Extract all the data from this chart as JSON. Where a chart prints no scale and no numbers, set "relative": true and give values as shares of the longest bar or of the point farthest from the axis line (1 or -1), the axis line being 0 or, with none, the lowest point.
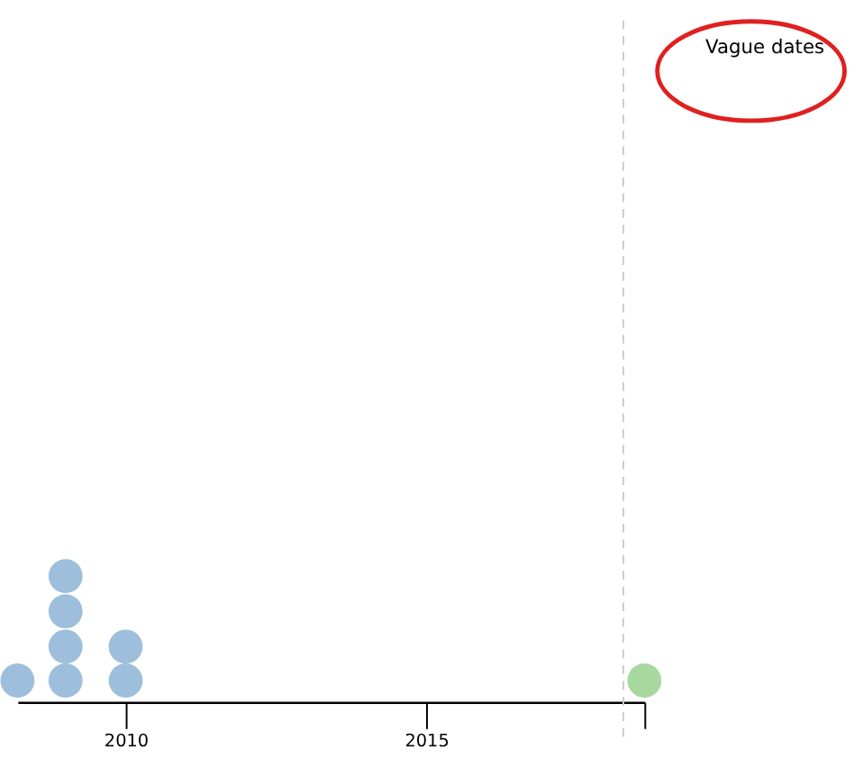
{
  "chart_data": {
    "type": "scatter",
    "relative": true,
    "series": [
      {
        "color": "#9dbfdc",
        "x": [
          2008.2,
          2009.0,
          2009.0,
          2009.0,
          2009.0,
          2010.0,
          2010.0
        ],
        "values": [
          0.17,
          0.17,
          0.44,
          0.72,
          1,
          0.17,
          0.44
        ]
      },
      {
        "color": "#a8d8a0",
        "x": [
          2018.63
        ],
        "values": [
          0.17
        ]
      }
    ],
    "xlim": [
      2008.2,
      2018.63
    ],
    "xticks": [
      2010,
      2015,
      {
        "value": 2018.63,
        "label": null
      }
    ],
    "marker": "circle",
    "grid": false,
    "ref_lines": [
      {
        "axis": "x",
        "value": 2018.28,
        "label": null,
        "color": "#cccccc",
        "line_style": "dashed"
      }
    ],
    "annotations": [
      "Vague dates"
    ]
  }
}
